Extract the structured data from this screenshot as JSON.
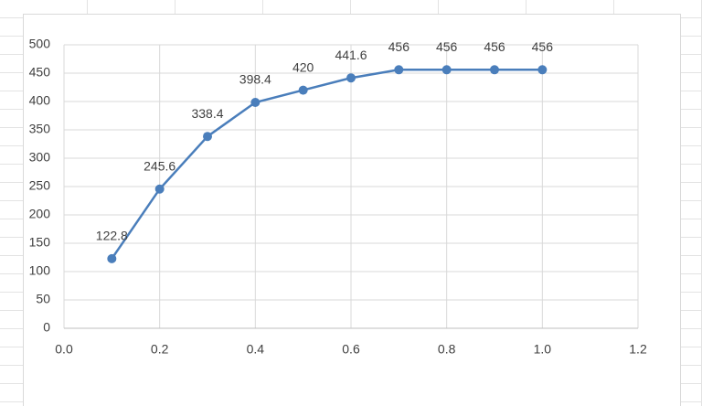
{
  "chart_data": {
    "type": "line",
    "x": [
      0.1,
      0.2,
      0.3,
      0.4,
      0.5,
      0.6,
      0.7,
      0.8,
      0.9,
      1.0
    ],
    "series": [
      {
        "color": "#4a7ebb",
        "values": [
          122.8,
          245.6,
          338.4,
          398.4,
          420,
          441.6,
          456,
          456,
          456,
          456
        ]
      }
    ],
    "xlim": [
      0,
      1.2
    ],
    "xticks": [
      {
        "value": 0,
        "label": "0.0"
      },
      0.2,
      0.4,
      0.6,
      0.8,
      {
        "value": 1,
        "label": "1.0"
      },
      1.2
    ],
    "ylim": [
      0,
      500
    ],
    "yticks": [
      0,
      50,
      100,
      150,
      200,
      250,
      300,
      350,
      400,
      450,
      500
    ],
    "grid": true,
    "data_labels": true
  }
}
